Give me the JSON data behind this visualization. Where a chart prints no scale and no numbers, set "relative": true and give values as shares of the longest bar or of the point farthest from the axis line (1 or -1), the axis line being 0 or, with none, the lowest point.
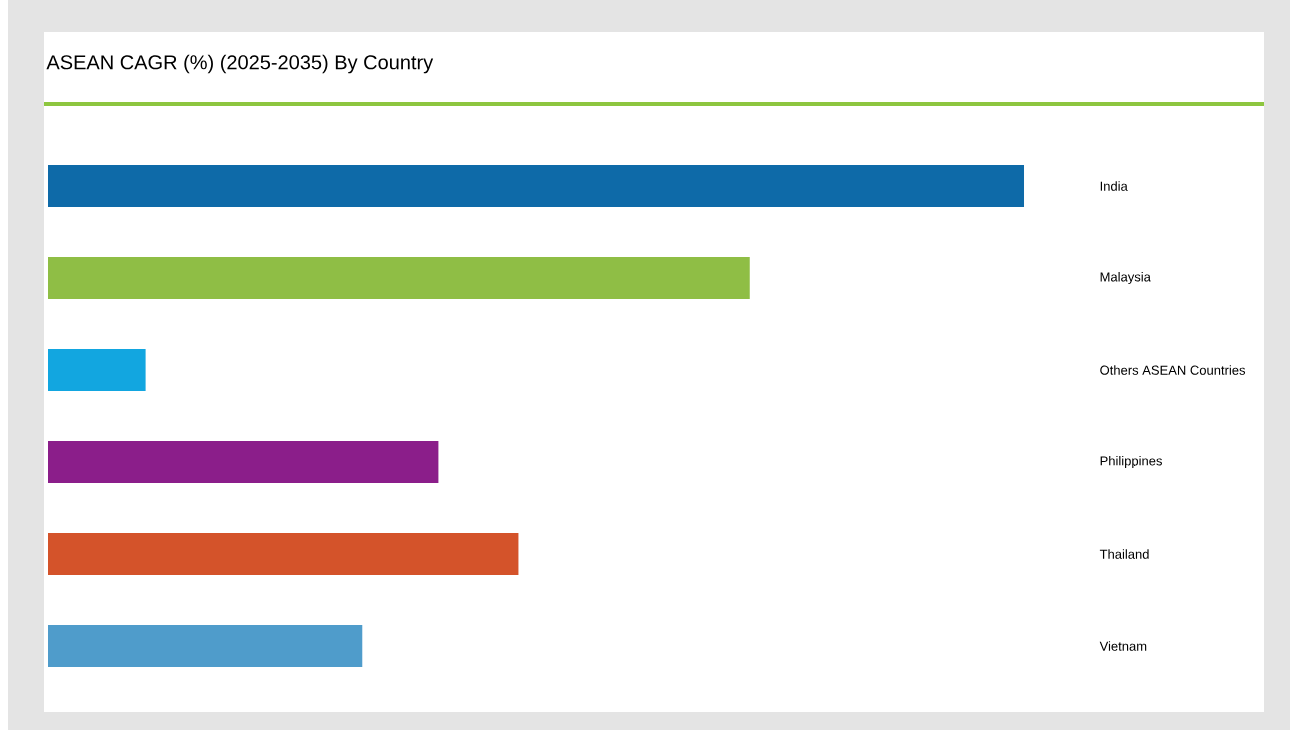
{
  "chart_data": {
    "type": "bar",
    "orientation": "horizontal",
    "relative": true,
    "title": "ASEAN CAGR (%) (2025-2035) By Country",
    "categories": [
      "India",
      "Malaysia",
      "Others ASEAN Countries",
      "Philippines",
      "Thailand",
      "Vietnam"
    ],
    "values": [
      1,
      0.719,
      0.1,
      0.4,
      0.482,
      0.322
    ],
    "colors": [
      "#0e6aa8",
      "#8fbe45",
      "#12a6e0",
      "#8b1e8a",
      "#d4532a",
      "#4f9ccb"
    ]
  }
}
